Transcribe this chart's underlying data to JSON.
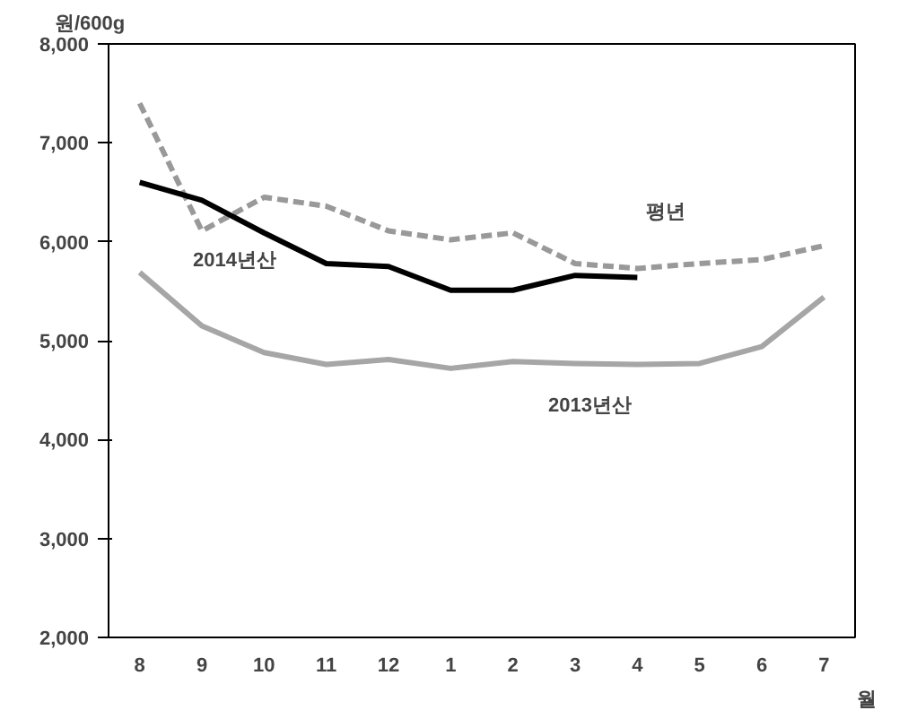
{
  "chart_data": {
    "type": "line",
    "ylabel": "원/600g",
    "xlabel": "월",
    "categories": [
      "8",
      "9",
      "10",
      "11",
      "12",
      "1",
      "2",
      "3",
      "4",
      "5",
      "6",
      "7"
    ],
    "ylim": [
      2000,
      8000
    ],
    "yticks": [
      {
        "value": 2000,
        "label": "2,000"
      },
      {
        "value": 3000,
        "label": "3,000"
      },
      {
        "value": 4000,
        "label": "4,000"
      },
      {
        "value": 5000,
        "label": "5,000"
      },
      {
        "value": 6000,
        "label": "6,000"
      },
      {
        "value": 7000,
        "label": "7,000"
      },
      {
        "value": 8000,
        "label": "8,000"
      }
    ],
    "grid": false,
    "series": [
      {
        "name": "평년",
        "color": "#999999",
        "line_style": "dashed",
        "values": [
          7400,
          6110,
          6450,
          6360,
          6110,
          6020,
          6090,
          5780,
          5730,
          5780,
          5820,
          5960
        ]
      },
      {
        "name": "2014년산",
        "color": "#000000",
        "line_style": "solid",
        "values": [
          6600,
          6420,
          6090,
          5780,
          5750,
          5510,
          5510,
          5660,
          5640,
          null,
          null,
          null
        ]
      },
      {
        "name": "2013년산",
        "color": "#a6a6a6",
        "line_style": "solid",
        "values": [
          5690,
          5150,
          4880,
          4760,
          4810,
          4720,
          4790,
          4770,
          4760,
          4770,
          4940,
          5440
        ]
      }
    ]
  }
}
